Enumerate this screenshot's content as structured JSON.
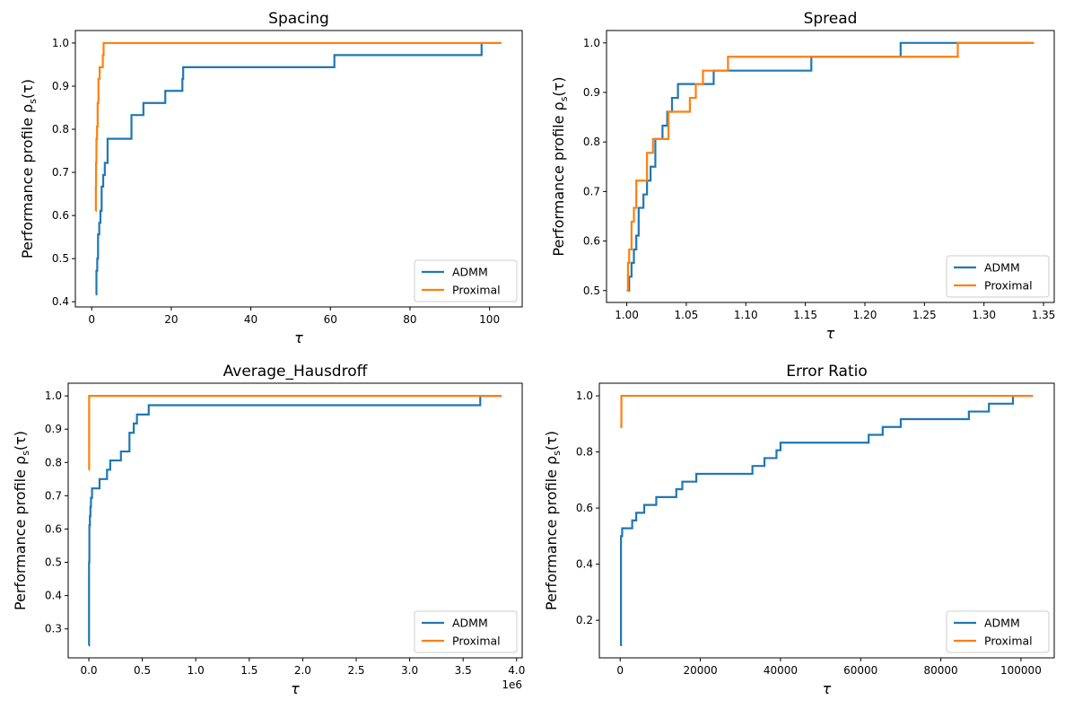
{
  "colors": {
    "admm": "#1f77b4",
    "proximal": "#ff7f0e"
  },
  "chart_data": [
    {
      "type": "line",
      "step": true,
      "title": "Spacing",
      "xlabel": "τ",
      "ylabel": "Performance profile ρ",
      "ylabel_sub": "s",
      "ylabel_tail": "(τ)",
      "xlim": [
        -4.1,
        108.2
      ],
      "ylim": [
        0.388,
        1.029
      ],
      "xticks": [
        0,
        20,
        40,
        60,
        80,
        100
      ],
      "xtick_labels": [
        "0",
        "20",
        "40",
        "60",
        "80",
        "100"
      ],
      "yticks": [
        0.4,
        0.5,
        0.6,
        0.7,
        0.8,
        0.9,
        1.0
      ],
      "ytick_labels": [
        "0.4",
        "0.5",
        "0.6",
        "0.7",
        "0.8",
        "0.9",
        "1.0"
      ],
      "x_offset_label": "",
      "legend": "lower right",
      "series": [
        {
          "name": "ADMM",
          "x": [
            1.0,
            1.2,
            1.4,
            1.6,
            1.9,
            2.2,
            2.5,
            2.9,
            3.3,
            4.0,
            10.0,
            13.0,
            18.5,
            22.8,
            23.0,
            61.0,
            98.0,
            103.0
          ],
          "y": [
            0.417,
            0.472,
            0.5,
            0.556,
            0.583,
            0.611,
            0.667,
            0.694,
            0.722,
            0.778,
            0.833,
            0.861,
            0.889,
            0.917,
            0.944,
            0.972,
            1.0,
            1.0
          ]
        },
        {
          "name": "Proximal",
          "x": [
            1.0,
            1.05,
            1.1,
            1.2,
            1.35,
            1.5,
            1.7,
            2.0,
            2.3,
            2.8,
            3.0,
            3.2,
            103.0
          ],
          "y": [
            0.611,
            0.667,
            0.722,
            0.778,
            0.806,
            0.861,
            0.917,
            0.944,
            0.944,
            0.972,
            1.0,
            1.0,
            1.0
          ]
        }
      ]
    },
    {
      "type": "line",
      "step": true,
      "title": "Spread",
      "xlabel": "τ",
      "ylabel": "Performance profile ρ",
      "ylabel_sub": "s",
      "ylabel_tail": "(τ)",
      "xlim": [
        0.983,
        1.359
      ],
      "ylim": [
        0.476,
        1.025
      ],
      "xticks": [
        1.0,
        1.05,
        1.1,
        1.15,
        1.2,
        1.25,
        1.3,
        1.35
      ],
      "xtick_labels": [
        "1.00",
        "1.05",
        "1.10",
        "1.15",
        "1.20",
        "1.25",
        "1.30",
        "1.35"
      ],
      "yticks": [
        0.5,
        0.6,
        0.7,
        0.8,
        0.9,
        1.0
      ],
      "ytick_labels": [
        "0.5",
        "0.6",
        "0.7",
        "0.8",
        "0.9",
        "1.0"
      ],
      "x_offset_label": "",
      "legend": "lower right",
      "series": [
        {
          "name": "ADMM",
          "x": [
            1.0,
            1.002,
            1.004,
            1.006,
            1.008,
            1.01,
            1.014,
            1.017,
            1.02,
            1.024,
            1.03,
            1.034,
            1.038,
            1.043,
            1.06,
            1.073,
            1.155,
            1.23,
            1.342
          ],
          "y": [
            0.5,
            0.528,
            0.556,
            0.583,
            0.611,
            0.667,
            0.694,
            0.722,
            0.75,
            0.806,
            0.833,
            0.861,
            0.889,
            0.917,
            0.917,
            0.944,
            0.972,
            1.0,
            1.0
          ]
        },
        {
          "name": "Proximal",
          "x": [
            1.0,
            1.001,
            1.002,
            1.004,
            1.006,
            1.008,
            1.017,
            1.022,
            1.026,
            1.035,
            1.045,
            1.053,
            1.058,
            1.064,
            1.085,
            1.278,
            1.342
          ],
          "y": [
            0.5,
            0.556,
            0.583,
            0.639,
            0.667,
            0.722,
            0.778,
            0.806,
            0.806,
            0.861,
            0.861,
            0.889,
            0.917,
            0.944,
            0.972,
            1.0,
            1.0
          ]
        }
      ]
    },
    {
      "type": "line",
      "step": true,
      "title": "Average_Hausdroff",
      "xlabel": "τ",
      "ylabel": "Performance profile ρ",
      "ylabel_sub": "s",
      "ylabel_tail": "(τ)",
      "xlim": [
        -193000,
        4052000
      ],
      "ylim": [
        0.213,
        1.038
      ],
      "xticks": [
        0,
        500000,
        1000000,
        1500000,
        2000000,
        2500000,
        3000000,
        3500000,
        4000000
      ],
      "xtick_labels": [
        "0.0",
        "0.5",
        "1.0",
        "1.5",
        "2.0",
        "2.5",
        "3.0",
        "3.5",
        "4.0"
      ],
      "yticks": [
        0.3,
        0.4,
        0.5,
        0.6,
        0.7,
        0.8,
        0.9,
        1.0
      ],
      "ytick_labels": [
        "0.3",
        "0.4",
        "0.5",
        "0.6",
        "0.7",
        "0.8",
        "0.9",
        "1.0"
      ],
      "x_offset_label": "1e6",
      "legend": "lower right",
      "series": [
        {
          "name": "ADMM",
          "x": [
            1,
            2000,
            5000,
            10000,
            15000,
            20000,
            30000,
            100000,
            170000,
            200000,
            300000,
            380000,
            420000,
            450000,
            560000,
            3660000,
            3860000
          ],
          "y": [
            0.25,
            0.5,
            0.611,
            0.639,
            0.667,
            0.694,
            0.722,
            0.75,
            0.778,
            0.806,
            0.833,
            0.889,
            0.917,
            0.944,
            0.972,
            1.0,
            1.0
          ]
        },
        {
          "name": "Proximal",
          "x": [
            1,
            3000,
            3860000
          ],
          "y": [
            0.778,
            1.0,
            1.0
          ]
        }
      ]
    },
    {
      "type": "line",
      "step": true,
      "title": "Error Ratio",
      "xlabel": "τ",
      "ylabel": "Performance profile ρ",
      "ylabel_sub": "s",
      "ylabel_tail": "(τ)",
      "xlim": [
        -5200,
        108300
      ],
      "ylim": [
        0.066,
        1.045
      ],
      "xticks": [
        0,
        20000,
        40000,
        60000,
        80000,
        100000
      ],
      "xtick_labels": [
        "0",
        "20000",
        "40000",
        "60000",
        "80000",
        "100000"
      ],
      "yticks": [
        0.2,
        0.4,
        0.6,
        0.8,
        1.0
      ],
      "ytick_labels": [
        "0.2",
        "0.4",
        "0.6",
        "0.8",
        "1.0"
      ],
      "x_offset_label": "",
      "legend": "lower right",
      "series": [
        {
          "name": "ADMM",
          "x": [
            1,
            200,
            500,
            1000,
            3000,
            4000,
            6000,
            9000,
            14000,
            15500,
            19000,
            33000,
            36000,
            39000,
            40000,
            62000,
            65500,
            70000,
            87000,
            92000,
            98000,
            103000
          ],
          "y": [
            0.111,
            0.5,
            0.528,
            0.528,
            0.556,
            0.583,
            0.611,
            0.639,
            0.667,
            0.694,
            0.722,
            0.75,
            0.778,
            0.806,
            0.833,
            0.861,
            0.889,
            0.917,
            0.944,
            0.972,
            1.0,
            1.0
          ]
        },
        {
          "name": "Proximal",
          "x": [
            1,
            300,
            103000
          ],
          "y": [
            0.889,
            1.0,
            1.0
          ]
        }
      ]
    }
  ]
}
